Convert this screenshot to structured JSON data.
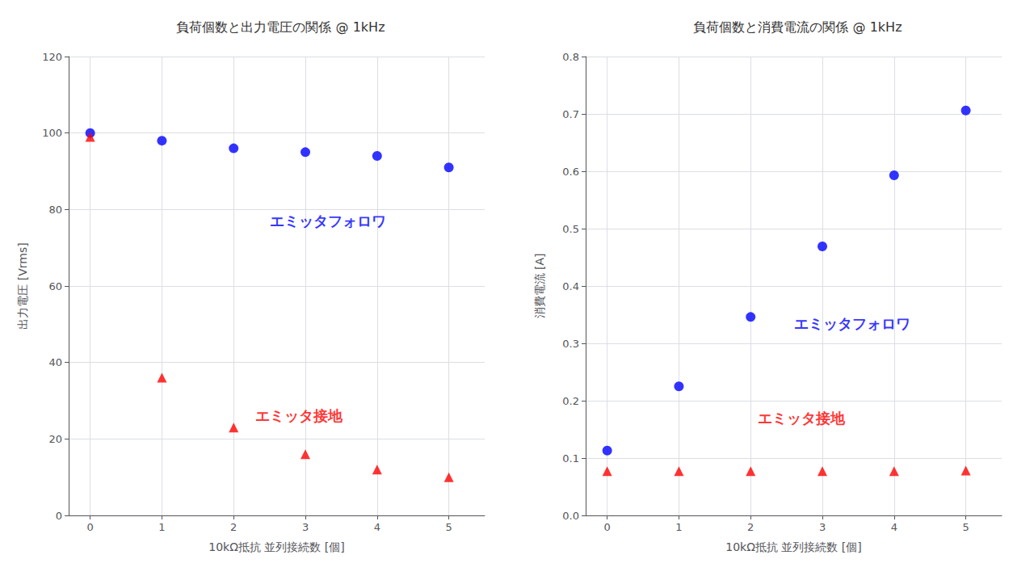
{
  "chart_data": [
    {
      "type": "scatter",
      "title": "負荷個数と出力電圧の関係 @ 1kHz",
      "xlabel": "10kΩ抵抗 並列接続数 [個]",
      "ylabel": "出力電圧 [Vrms]",
      "xlim": [
        -0.3,
        5.5
      ],
      "ylim": [
        0,
        120
      ],
      "xticks": [
        0,
        1,
        2,
        3,
        4,
        5
      ],
      "yticks": [
        0,
        20,
        40,
        60,
        80,
        100,
        120
      ],
      "grid": true,
      "series": [
        {
          "color": "#0000ff",
          "marker": "circle",
          "x": [
            0,
            1,
            2,
            3,
            4,
            5
          ],
          "values": [
            100,
            98,
            96,
            95,
            94,
            91
          ]
        },
        {
          "color": "#ff0000",
          "marker": "triangle",
          "x": [
            0,
            1,
            2,
            3,
            4,
            5
          ],
          "values": [
            99,
            36,
            23,
            16,
            12,
            10
          ]
        }
      ],
      "annotations": [
        {
          "x": 2.5,
          "y": 77,
          "text": "エミッタフォロワ",
          "color": "#0000ff"
        },
        {
          "x": 2.3,
          "y": 26,
          "text": "エミッタ接地",
          "color": "#ff0000"
        }
      ]
    },
    {
      "type": "scatter",
      "title": "負荷個数と消費電流の関係 @ 1kHz",
      "xlabel": "10kΩ抵抗 並列接続数 [個]",
      "ylabel": "消費電流 [A]",
      "xlim": [
        -0.3,
        5.5
      ],
      "ylim": [
        0,
        0.8
      ],
      "xticks": [
        0,
        1,
        2,
        3,
        4,
        5
      ],
      "yticks": [
        {
          "value": 0,
          "label": "0.0"
        },
        0.1,
        0.2,
        0.3,
        0.4,
        0.5,
        0.6,
        0.7,
        0.8
      ],
      "grid": true,
      "series": [
        {
          "color": "#0000ff",
          "marker": "circle",
          "x": [
            0,
            1,
            2,
            3,
            4,
            5
          ],
          "values": [
            0.113,
            0.225,
            0.346,
            0.469,
            0.593,
            0.706
          ]
        },
        {
          "color": "#ff0000",
          "marker": "triangle",
          "x": [
            0,
            1,
            2,
            3,
            4,
            5
          ],
          "values": [
            0.077,
            0.077,
            0.077,
            0.077,
            0.077,
            0.078
          ]
        }
      ],
      "annotations": [
        {
          "x": 2.6,
          "y": 0.335,
          "text": "エミッタフォロワ",
          "color": "#0000ff"
        },
        {
          "x": 2.1,
          "y": 0.17,
          "text": "エミッタ接地",
          "color": "#ff0000"
        }
      ]
    }
  ]
}
